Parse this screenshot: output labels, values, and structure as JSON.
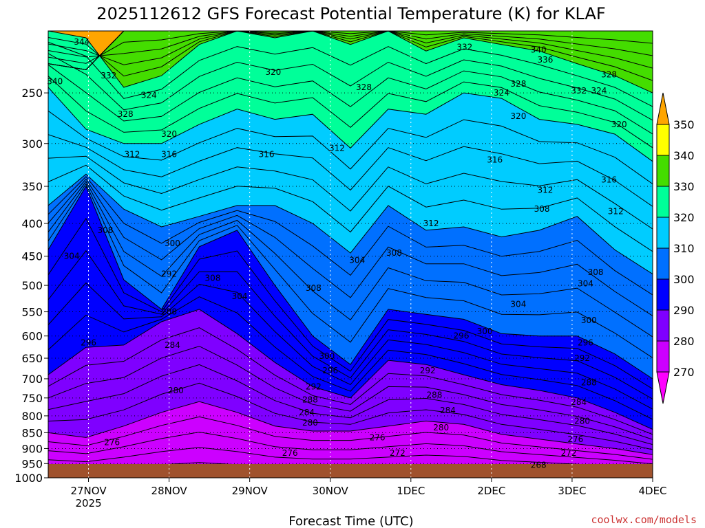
{
  "chart_data": {
    "type": "contour",
    "title": "2025112612 GFS Forecast Potential Temperature (K) for KLAF",
    "xlabel": "Forecast Time (UTC)",
    "ylabel": "",
    "y_scale": "log-pressure",
    "y_inverted": true,
    "ylim": [
      1000,
      200
    ],
    "y_ticks": [
      250,
      300,
      350,
      400,
      450,
      500,
      550,
      600,
      650,
      700,
      750,
      800,
      850,
      900,
      950,
      1000
    ],
    "x_ticks": [
      {
        "label": "27NOV",
        "sub": "2025",
        "hour": 12
      },
      {
        "label": "28NOV",
        "sub": "",
        "hour": 36
      },
      {
        "label": "29NOV",
        "sub": "",
        "hour": 60
      },
      {
        "label": "30NOV",
        "sub": "",
        "hour": 84
      },
      {
        "label": "1DEC",
        "sub": "",
        "hour": 108
      },
      {
        "label": "2DEC",
        "sub": "",
        "hour": 132
      },
      {
        "label": "3DEC",
        "sub": "",
        "hour": 156
      },
      {
        "label": "4DEC",
        "sub": "",
        "hour": 180
      }
    ],
    "xlim": [
      0,
      180
    ],
    "grid": true,
    "contour_interval": 2,
    "colorbar": {
      "levels": [
        270,
        280,
        290,
        300,
        310,
        320,
        330,
        340,
        350
      ],
      "colors": [
        "#ff00ff",
        "#cc00ff",
        "#7f00ff",
        "#0000ff",
        "#0070ff",
        "#00ccff",
        "#00ff99",
        "#44dd00",
        "#ffff00",
        "#ffa500"
      ]
    },
    "level_profiles": [
      {
        "theta": 270,
        "p": [
          1000,
          1000,
          1000,
          1000,
          1000,
          1000,
          1000,
          1000,
          1000,
          1000,
          1000,
          1000,
          1000,
          1000,
          1000,
          1000,
          1000
        ]
      },
      {
        "theta": 280,
        "p": [
          850,
          865,
          830,
          790,
          760,
          790,
          830,
          845,
          845,
          830,
          815,
          825,
          855,
          870,
          885,
          900,
          920
        ]
      },
      {
        "theta": 290,
        "p": [
          690,
          625,
          620,
          570,
          545,
          595,
          660,
          720,
          750,
          655,
          665,
          690,
          715,
          730,
          750,
          790,
          840
        ]
      },
      {
        "theta": 300,
        "p": [
          440,
          350,
          490,
          545,
          435,
          410,
          500,
          600,
          665,
          545,
          555,
          565,
          595,
          600,
          600,
          640,
          700
        ]
      },
      {
        "theta": 310,
        "p": [
          375,
          335,
          380,
          405,
          390,
          375,
          375,
          400,
          445,
          375,
          410,
          405,
          420,
          410,
          390,
          440,
          480
        ]
      },
      {
        "theta": 320,
        "p": [
          245,
          285,
          300,
          300,
          280,
          265,
          275,
          270,
          305,
          265,
          270,
          250,
          255,
          275,
          280,
          290,
          320
        ]
      },
      {
        "theta": 330,
        "p": [
          200,
          205,
          245,
          235,
          210,
          200,
          205,
          200,
          210,
          200,
          215,
          205,
          210,
          215,
          225,
          235,
          250
        ]
      },
      {
        "theta": 340,
        "p": [
          225,
          230,
          200,
          200,
          200,
          200,
          200,
          200,
          200,
          200,
          200,
          200,
          200,
          200,
          200,
          200,
          200
        ]
      }
    ],
    "contour_labels": [
      {
        "text": "344",
        "hour": 10,
        "p": 208
      },
      {
        "text": "340",
        "hour": 2,
        "p": 240
      },
      {
        "text": "332",
        "hour": 18,
        "p": 235
      },
      {
        "text": "328",
        "hour": 23,
        "p": 270
      },
      {
        "text": "324",
        "hour": 30,
        "p": 252
      },
      {
        "text": "320",
        "hour": 67,
        "p": 232
      },
      {
        "text": "328",
        "hour": 94,
        "p": 245
      },
      {
        "text": "332",
        "hour": 124,
        "p": 212
      },
      {
        "text": "340",
        "hour": 146,
        "p": 214
      },
      {
        "text": "336",
        "hour": 148,
        "p": 222
      },
      {
        "text": "328",
        "hour": 140,
        "p": 242
      },
      {
        "text": "324",
        "hour": 135,
        "p": 250
      },
      {
        "text": "332",
        "hour": 158,
        "p": 248
      },
      {
        "text": "324",
        "hour": 164,
        "p": 248
      },
      {
        "text": "328",
        "hour": 167,
        "p": 234
      },
      {
        "text": "320",
        "hour": 140,
        "p": 272
      },
      {
        "text": "320",
        "hour": 170,
        "p": 280
      },
      {
        "text": "320",
        "hour": 36,
        "p": 290
      },
      {
        "text": "312",
        "hour": 25,
        "p": 312
      },
      {
        "text": "316",
        "hour": 36,
        "p": 312
      },
      {
        "text": "316",
        "hour": 65,
        "p": 312
      },
      {
        "text": "312",
        "hour": 86,
        "p": 305
      },
      {
        "text": "316",
        "hour": 133,
        "p": 318
      },
      {
        "text": "316",
        "hour": 167,
        "p": 342
      },
      {
        "text": "312",
        "hour": 148,
        "p": 355
      },
      {
        "text": "312",
        "hour": 169,
        "p": 383
      },
      {
        "text": "308",
        "hour": 147,
        "p": 380
      },
      {
        "text": "312",
        "hour": 114,
        "p": 400
      },
      {
        "text": "308",
        "hour": 17,
        "p": 410
      },
      {
        "text": "304",
        "hour": 7,
        "p": 450
      },
      {
        "text": "300",
        "hour": 37,
        "p": 430
      },
      {
        "text": "308",
        "hour": 49,
        "p": 487
      },
      {
        "text": "292",
        "hour": 36,
        "p": 480
      },
      {
        "text": "304",
        "hour": 57,
        "p": 520
      },
      {
        "text": "308",
        "hour": 79,
        "p": 505
      },
      {
        "text": "304",
        "hour": 92,
        "p": 457
      },
      {
        "text": "308",
        "hour": 103,
        "p": 445
      },
      {
        "text": "304",
        "hour": 140,
        "p": 535
      },
      {
        "text": "308",
        "hour": 163,
        "p": 477
      },
      {
        "text": "304",
        "hour": 160,
        "p": 497
      },
      {
        "text": "300",
        "hour": 161,
        "p": 567
      },
      {
        "text": "288",
        "hour": 36,
        "p": 550
      },
      {
        "text": "296",
        "hour": 12,
        "p": 615
      },
      {
        "text": "284",
        "hour": 37,
        "p": 620
      },
      {
        "text": "296",
        "hour": 123,
        "p": 600
      },
      {
        "text": "300",
        "hour": 130,
        "p": 590
      },
      {
        "text": "296",
        "hour": 160,
        "p": 615
      },
      {
        "text": "292",
        "hour": 159,
        "p": 650
      },
      {
        "text": "300",
        "hour": 83,
        "p": 645
      },
      {
        "text": "296",
        "hour": 84,
        "p": 680
      },
      {
        "text": "292",
        "hour": 113,
        "p": 680
      },
      {
        "text": "288",
        "hour": 161,
        "p": 710
      },
      {
        "text": "292",
        "hour": 79,
        "p": 720
      },
      {
        "text": "288",
        "hour": 78,
        "p": 755
      },
      {
        "text": "288",
        "hour": 115,
        "p": 742
      },
      {
        "text": "280",
        "hour": 38,
        "p": 730
      },
      {
        "text": "284",
        "hour": 77,
        "p": 790
      },
      {
        "text": "284",
        "hour": 119,
        "p": 785
      },
      {
        "text": "284",
        "hour": 158,
        "p": 762
      },
      {
        "text": "280",
        "hour": 78,
        "p": 820
      },
      {
        "text": "280",
        "hour": 117,
        "p": 835
      },
      {
        "text": "280",
        "hour": 159,
        "p": 815
      },
      {
        "text": "276",
        "hour": 19,
        "p": 880
      },
      {
        "text": "276",
        "hour": 72,
        "p": 915
      },
      {
        "text": "276",
        "hour": 98,
        "p": 865
      },
      {
        "text": "276",
        "hour": 157,
        "p": 870
      },
      {
        "text": "272",
        "hour": 104,
        "p": 915
      },
      {
        "text": "272",
        "hour": 155,
        "p": 915
      },
      {
        "text": "268",
        "hour": 146,
        "p": 955
      }
    ]
  },
  "credit": "coolwx.com/models"
}
